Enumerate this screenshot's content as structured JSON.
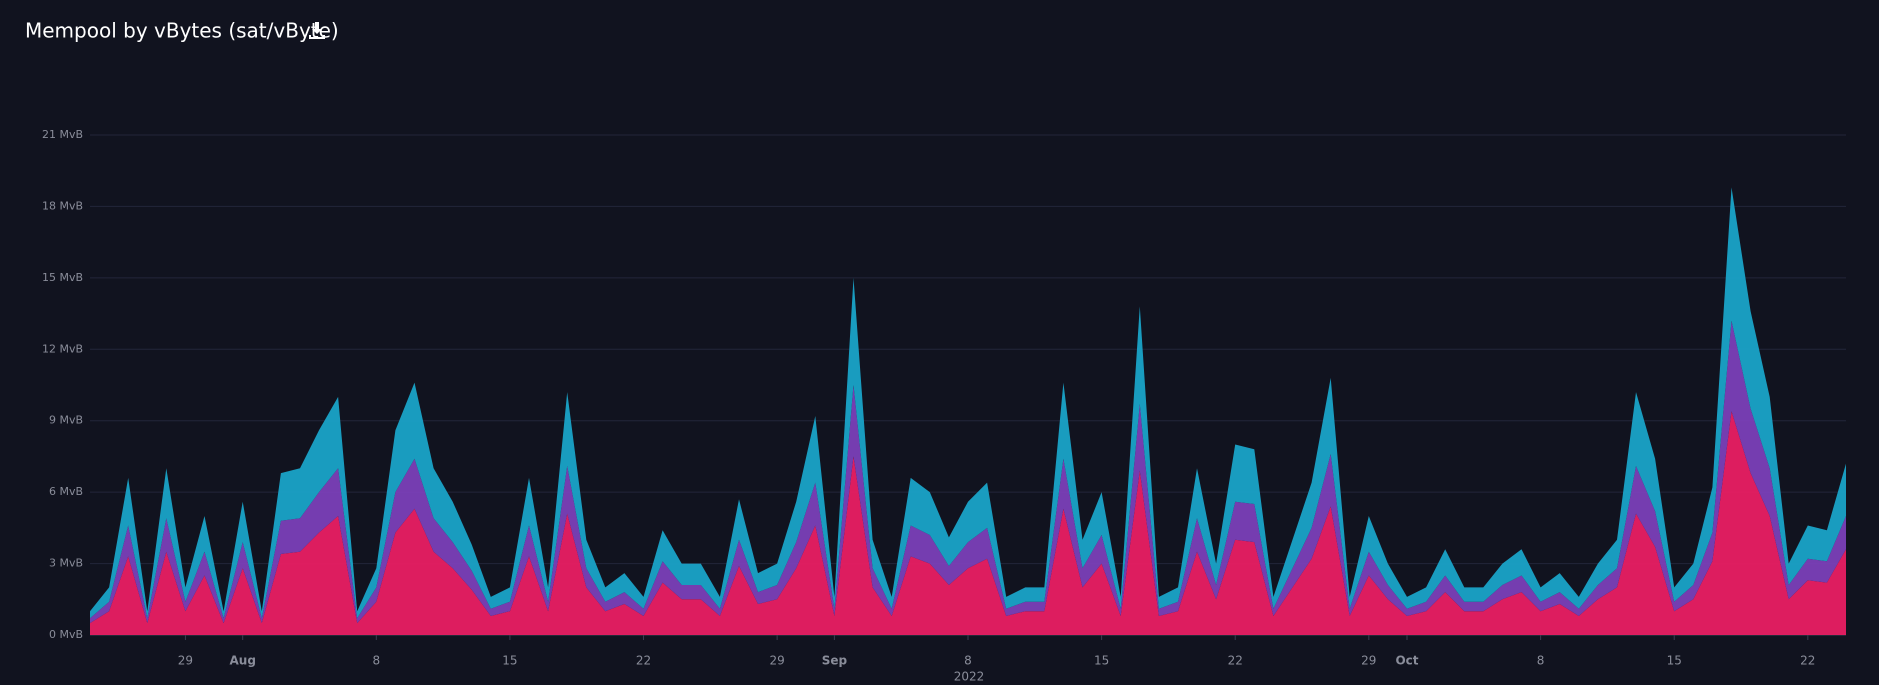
{
  "chart_data": {
    "type": "area",
    "stacked": true,
    "title": "Mempool by vBytes (sat/vByte)",
    "x_axis_label": "2022",
    "x": [
      "2022-07-24",
      "2022-07-25",
      "2022-07-26",
      "2022-07-27",
      "2022-07-28",
      "2022-07-29",
      "2022-07-30",
      "2022-07-31",
      "2022-08-01",
      "2022-08-02",
      "2022-08-03",
      "2022-08-04",
      "2022-08-05",
      "2022-08-06",
      "2022-08-07",
      "2022-08-08",
      "2022-08-09",
      "2022-08-10",
      "2022-08-11",
      "2022-08-12",
      "2022-08-13",
      "2022-08-14",
      "2022-08-15",
      "2022-08-16",
      "2022-08-17",
      "2022-08-18",
      "2022-08-19",
      "2022-08-20",
      "2022-08-21",
      "2022-08-22",
      "2022-08-23",
      "2022-08-24",
      "2022-08-25",
      "2022-08-26",
      "2022-08-27",
      "2022-08-28",
      "2022-08-29",
      "2022-08-30",
      "2022-08-31",
      "2022-09-01",
      "2022-09-02",
      "2022-09-03",
      "2022-09-04",
      "2022-09-05",
      "2022-09-06",
      "2022-09-07",
      "2022-09-08",
      "2022-09-09",
      "2022-09-10",
      "2022-09-11",
      "2022-09-12",
      "2022-09-13",
      "2022-09-14",
      "2022-09-15",
      "2022-09-16",
      "2022-09-17",
      "2022-09-18",
      "2022-09-19",
      "2022-09-20",
      "2022-09-21",
      "2022-09-22",
      "2022-09-23",
      "2022-09-24",
      "2022-09-25",
      "2022-09-26",
      "2022-09-27",
      "2022-09-28",
      "2022-09-29",
      "2022-09-30",
      "2022-10-01",
      "2022-10-02",
      "2022-10-03",
      "2022-10-04",
      "2022-10-05",
      "2022-10-06",
      "2022-10-07",
      "2022-10-08",
      "2022-10-09",
      "2022-10-10",
      "2022-10-11",
      "2022-10-12",
      "2022-10-13",
      "2022-10-14",
      "2022-10-15",
      "2022-10-16",
      "2022-10-17",
      "2022-10-18",
      "2022-10-19",
      "2022-10-20",
      "2022-10-21",
      "2022-10-22",
      "2022-10-23",
      "2022-10-24"
    ],
    "series": [
      {
        "color": "#e91e63",
        "values": [
          0.5,
          1,
          3.3,
          0.5,
          3.5,
          1,
          2.5,
          0.5,
          2.8,
          0.5,
          3.4,
          3.5,
          4.3,
          5,
          0.5,
          1.4,
          4.3,
          5.3,
          3.5,
          2.8,
          1.9,
          0.8,
          1,
          3.3,
          1,
          5.1,
          2,
          1,
          1.3,
          0.8,
          2.2,
          1.5,
          1.5,
          0.8,
          2.9,
          1.3,
          1.5,
          2.8,
          4.6,
          0.8,
          7.5,
          2,
          0.8,
          3.3,
          3,
          2.1,
          2.8,
          3.2,
          0.8,
          1,
          1,
          5.3,
          2,
          3,
          0.8,
          6.9,
          0.8,
          1,
          3.5,
          1.5,
          4,
          3.9,
          0.8,
          2,
          3.2,
          5.4,
          0.8,
          2.5,
          1.5,
          0.8,
          1,
          1.8,
          1,
          1,
          1.5,
          1.8,
          1,
          1.3,
          0.8,
          1.5,
          2,
          5.1,
          3.7,
          1,
          1.5,
          3.1,
          9.4,
          6.8,
          5,
          1.5,
          2.3,
          2.2,
          3.6
        ]
      },
      {
        "color": "#7b3fb8",
        "values": [
          0.2,
          0.4,
          1.3,
          0.2,
          1.4,
          0.4,
          1,
          0.2,
          1.1,
          0.2,
          1.4,
          1.4,
          1.7,
          2,
          0.2,
          0.6,
          1.7,
          2.1,
          1.4,
          1.1,
          0.8,
          0.3,
          0.4,
          1.3,
          0.4,
          2,
          0.8,
          0.4,
          0.5,
          0.3,
          0.9,
          0.6,
          0.6,
          0.3,
          1.1,
          0.5,
          0.6,
          1.1,
          1.8,
          0.3,
          3,
          0.8,
          0.3,
          1.3,
          1.2,
          0.8,
          1.1,
          1.3,
          0.3,
          0.4,
          0.4,
          2.1,
          0.8,
          1.2,
          0.3,
          2.8,
          0.3,
          0.4,
          1.4,
          0.6,
          1.6,
          1.6,
          0.3,
          0.8,
          1.3,
          2.2,
          0.3,
          1,
          0.6,
          0.3,
          0.4,
          0.7,
          0.4,
          0.4,
          0.6,
          0.7,
          0.4,
          0.5,
          0.3,
          0.6,
          0.8,
          2,
          1.5,
          0.4,
          0.6,
          1.2,
          3.8,
          2.7,
          2,
          0.6,
          0.9,
          0.9,
          1.4
        ]
      },
      {
        "color": "#1aa3c8",
        "values": [
          0.3,
          0.6,
          2,
          0.3,
          2.1,
          0.6,
          1.5,
          0.3,
          1.7,
          0.3,
          2,
          2.1,
          2.6,
          3,
          0.3,
          0.8,
          2.6,
          3.2,
          2.1,
          1.7,
          1.1,
          0.5,
          0.6,
          2,
          0.6,
          3.1,
          1.2,
          0.6,
          0.8,
          0.5,
          1.3,
          0.9,
          0.9,
          0.5,
          1.7,
          0.8,
          0.9,
          1.7,
          2.8,
          0.5,
          4.5,
          1.2,
          0.5,
          2,
          1.8,
          1.2,
          1.7,
          1.9,
          0.5,
          0.6,
          0.6,
          3.2,
          1.2,
          1.8,
          0.5,
          4.1,
          0.5,
          0.6,
          2.1,
          0.9,
          2.4,
          2.3,
          0.5,
          1.2,
          1.9,
          3.2,
          0.5,
          1.5,
          0.9,
          0.5,
          0.6,
          1.1,
          0.6,
          0.6,
          0.9,
          1.1,
          0.6,
          0.8,
          0.5,
          0.9,
          1.2,
          3.1,
          2.2,
          0.6,
          0.9,
          1.9,
          5.6,
          4.1,
          3,
          0.9,
          1.4,
          1.3,
          2.2
        ]
      }
    ],
    "xlim": [
      "2022-07-24",
      "2022-10-24"
    ],
    "xticks": [
      {
        "value": "2022-07-29",
        "label": "29"
      },
      {
        "value": "2022-08-01",
        "label": "Aug"
      },
      {
        "value": "2022-08-08",
        "label": "8"
      },
      {
        "value": "2022-08-15",
        "label": "15"
      },
      {
        "value": "2022-08-22",
        "label": "22"
      },
      {
        "value": "2022-08-29",
        "label": "29"
      },
      {
        "value": "2022-09-01",
        "label": "Sep"
      },
      {
        "value": "2022-09-08",
        "label": "8"
      },
      {
        "value": "2022-09-15",
        "label": "15"
      },
      {
        "value": "2022-09-22",
        "label": "22"
      },
      {
        "value": "2022-09-29",
        "label": "29"
      },
      {
        "value": "2022-10-01",
        "label": "Oct"
      },
      {
        "value": "2022-10-08",
        "label": "8"
      },
      {
        "value": "2022-10-15",
        "label": "15"
      },
      {
        "value": "2022-10-22",
        "label": "22"
      }
    ],
    "ylim": [
      0,
      21
    ],
    "yticks": [
      {
        "value": 0,
        "label": "0 MvB"
      },
      {
        "value": 3,
        "label": "3 MvB"
      },
      {
        "value": 6,
        "label": "6 MvB"
      },
      {
        "value": 9,
        "label": "9 MvB"
      },
      {
        "value": 12,
        "label": "12 MvB"
      },
      {
        "value": 15,
        "label": "15 MvB"
      },
      {
        "value": 18,
        "label": "18 MvB"
      },
      {
        "value": 21,
        "label": "21 MvB"
      }
    ],
    "grid": true
  }
}
